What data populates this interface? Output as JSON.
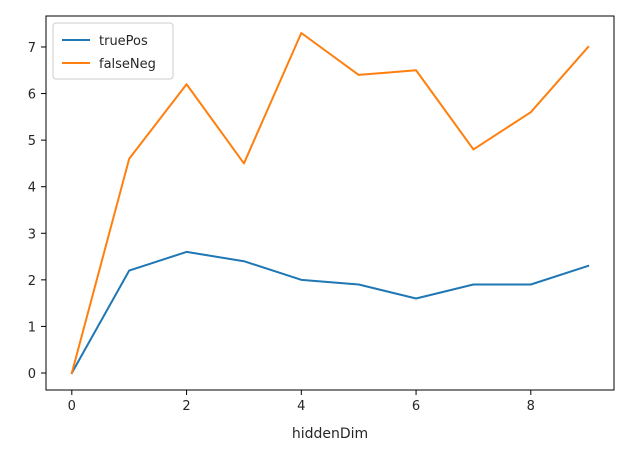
{
  "chart_data": {
    "type": "line",
    "title": "",
    "xlabel": "hiddenDim",
    "ylabel": "",
    "x": [
      0,
      1,
      2,
      3,
      4,
      5,
      6,
      7,
      8,
      9
    ],
    "xlim": [
      -0.45,
      9.45
    ],
    "ylim": [
      -0.365,
      7.665
    ],
    "xticks": [
      0,
      2,
      4,
      6,
      8
    ],
    "yticks": [
      0,
      1,
      2,
      3,
      4,
      5,
      6,
      7
    ],
    "grid": false,
    "legend_position": "top-left",
    "series": [
      {
        "name": "truePos",
        "color": "#1f77b4",
        "values": [
          0,
          2.2,
          2.6,
          2.4,
          2.0,
          1.9,
          1.6,
          1.9,
          1.9,
          2.3
        ]
      },
      {
        "name": "falseNeg",
        "color": "#ff7f0e",
        "values": [
          0,
          4.6,
          6.2,
          4.5,
          7.3,
          6.4,
          6.5,
          4.8,
          5.6,
          7.0
        ]
      }
    ]
  }
}
